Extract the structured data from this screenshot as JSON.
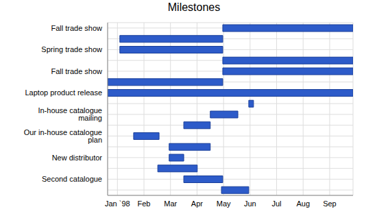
{
  "chart_data": {
    "type": "bar",
    "title": "Milestones",
    "orientation": "horizontal",
    "categories": [
      "Fall trade show",
      null,
      "Spring trade show",
      null,
      "Fall trade show",
      null,
      "Laptop product release",
      null,
      "In-house catalogue mailing",
      null,
      "Our in-house catalogue plan",
      null,
      "New distributor",
      null,
      "Second catalogue",
      null
    ],
    "start": [
      4.47,
      0.59,
      0.59,
      4.47,
      4.47,
      0.13,
      0.13,
      5.45,
      4.0,
      3.0,
      1.11,
      2.45,
      2.45,
      2.02,
      3.0,
      4.42
    ],
    "end": [
      9.38,
      4.47,
      4.47,
      9.38,
      9.38,
      4.47,
      9.38,
      5.63,
      5.04,
      4.0,
      2.07,
      4.0,
      3.0,
      3.51,
      4.47,
      5.45
    ],
    "color": "#2d5bc9",
    "xlim": [
      0.13,
      9.38
    ],
    "xticks": [
      {
        "value": 0.5,
        "label": "Jan `98"
      },
      {
        "value": 1.5,
        "label": "Feb"
      },
      {
        "value": 2.5,
        "label": "Mar"
      },
      {
        "value": 3.5,
        "label": "Apr"
      },
      {
        "value": 4.5,
        "label": "May"
      },
      {
        "value": 5.5,
        "label": "Jun"
      },
      {
        "value": 6.5,
        "label": "Jul"
      },
      {
        "value": 7.5,
        "label": "Aug"
      },
      {
        "value": 8.5,
        "label": "Sep"
      }
    ],
    "grid": true
  }
}
